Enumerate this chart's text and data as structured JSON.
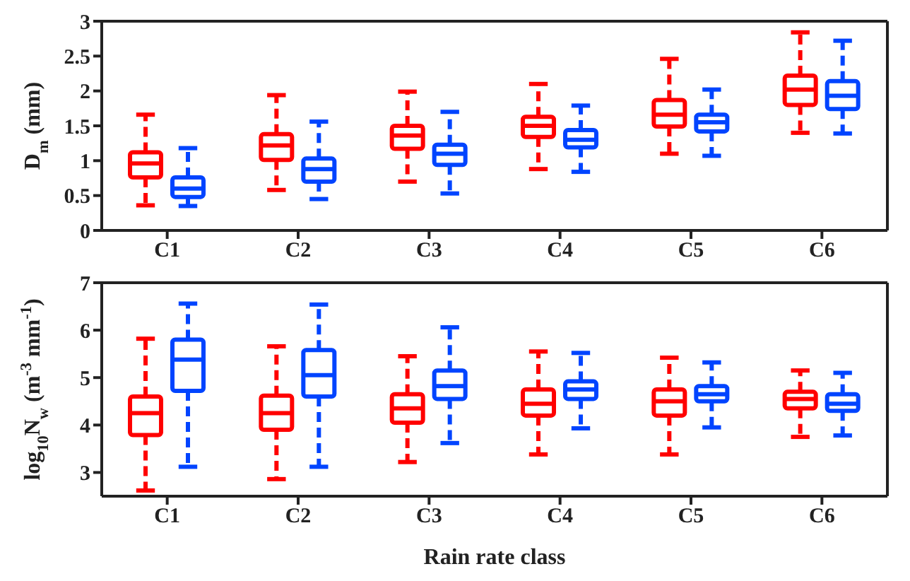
{
  "chart_data": [
    {
      "type": "box",
      "ylabel": "D$_{m}$ (mm)",
      "categories": [
        "C1",
        "C2",
        "C3",
        "C4",
        "C5",
        "C6"
      ],
      "ylim": [
        0,
        3
      ],
      "yticks": [
        0,
        0.5,
        1,
        1.5,
        2,
        2.5,
        3
      ],
      "grid": false,
      "series": [
        {
          "color": "#ff0000",
          "boxes": [
            {
              "low": 0.36,
              "q1": 0.76,
              "median": 0.96,
              "q3": 1.12,
              "high": 1.66
            },
            {
              "low": 0.58,
              "q1": 1.01,
              "median": 1.22,
              "q3": 1.38,
              "high": 1.94
            },
            {
              "low": 0.7,
              "q1": 1.17,
              "median": 1.36,
              "q3": 1.5,
              "high": 1.99
            },
            {
              "low": 0.88,
              "q1": 1.34,
              "median": 1.5,
              "q3": 1.63,
              "high": 2.1
            },
            {
              "low": 1.1,
              "q1": 1.49,
              "median": 1.66,
              "q3": 1.87,
              "high": 2.46
            },
            {
              "low": 1.4,
              "q1": 1.8,
              "median": 2.02,
              "q3": 2.22,
              "high": 2.84
            }
          ]
        },
        {
          "color": "#0044ff",
          "boxes": [
            {
              "low": 0.35,
              "q1": 0.48,
              "median": 0.6,
              "q3": 0.76,
              "high": 1.18
            },
            {
              "low": 0.45,
              "q1": 0.7,
              "median": 0.88,
              "q3": 1.03,
              "high": 1.56
            },
            {
              "low": 0.53,
              "q1": 0.94,
              "median": 1.1,
              "q3": 1.23,
              "high": 1.7
            },
            {
              "low": 0.84,
              "q1": 1.19,
              "median": 1.3,
              "q3": 1.44,
              "high": 1.79
            },
            {
              "low": 1.07,
              "q1": 1.42,
              "median": 1.55,
              "q3": 1.66,
              "high": 2.02
            },
            {
              "low": 1.39,
              "q1": 1.74,
              "median": 1.93,
              "q3": 2.14,
              "high": 2.72
            }
          ]
        }
      ]
    },
    {
      "type": "box",
      "ylabel": "log$_{10}$N$_{w}$ (m$^{-3}$ mm$^{-1}$)",
      "xlabel": "Rain rate class",
      "categories": [
        "C1",
        "C2",
        "C3",
        "C4",
        "C5",
        "C6"
      ],
      "ylim": [
        2.5,
        7
      ],
      "yticks": [
        3,
        4,
        5,
        6,
        7
      ],
      "grid": false,
      "series": [
        {
          "color": "#ff0000",
          "boxes": [
            {
              "low": 2.62,
              "q1": 3.79,
              "median": 4.25,
              "q3": 4.6,
              "high": 5.82
            },
            {
              "low": 2.86,
              "q1": 3.9,
              "median": 4.25,
              "q3": 4.62,
              "high": 5.66
            },
            {
              "low": 3.22,
              "q1": 4.05,
              "median": 4.35,
              "q3": 4.65,
              "high": 5.45
            },
            {
              "low": 3.38,
              "q1": 4.2,
              "median": 4.45,
              "q3": 4.75,
              "high": 5.55
            },
            {
              "low": 3.38,
              "q1": 4.2,
              "median": 4.5,
              "q3": 4.75,
              "high": 5.42
            },
            {
              "low": 3.75,
              "q1": 4.35,
              "median": 4.55,
              "q3": 4.7,
              "high": 5.15
            }
          ]
        },
        {
          "color": "#0044ff",
          "boxes": [
            {
              "low": 3.12,
              "q1": 4.72,
              "median": 5.38,
              "q3": 5.8,
              "high": 6.56
            },
            {
              "low": 3.12,
              "q1": 4.6,
              "median": 5.05,
              "q3": 5.58,
              "high": 6.54
            },
            {
              "low": 3.62,
              "q1": 4.55,
              "median": 4.82,
              "q3": 5.15,
              "high": 6.06
            },
            {
              "low": 3.93,
              "q1": 4.55,
              "median": 4.75,
              "q3": 4.92,
              "high": 5.52
            },
            {
              "low": 3.95,
              "q1": 4.5,
              "median": 4.65,
              "q3": 4.82,
              "high": 5.32
            },
            {
              "low": 3.78,
              "q1": 4.3,
              "median": 4.45,
              "q3": 4.65,
              "high": 5.1
            }
          ]
        }
      ]
    }
  ]
}
